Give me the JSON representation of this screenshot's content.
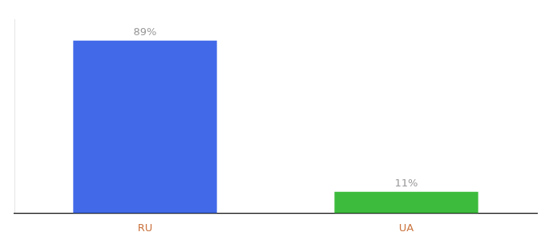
{
  "chart_data": {
    "type": "bar",
    "categories": [
      "RU",
      "UA"
    ],
    "values": [
      89,
      11
    ],
    "value_labels": [
      "89%",
      "11%"
    ],
    "colors": [
      "#4169e8",
      "#3dbb3d"
    ],
    "ylim": [
      0,
      100
    ],
    "data_labels": true,
    "tick_labels": "x",
    "grid": false
  }
}
